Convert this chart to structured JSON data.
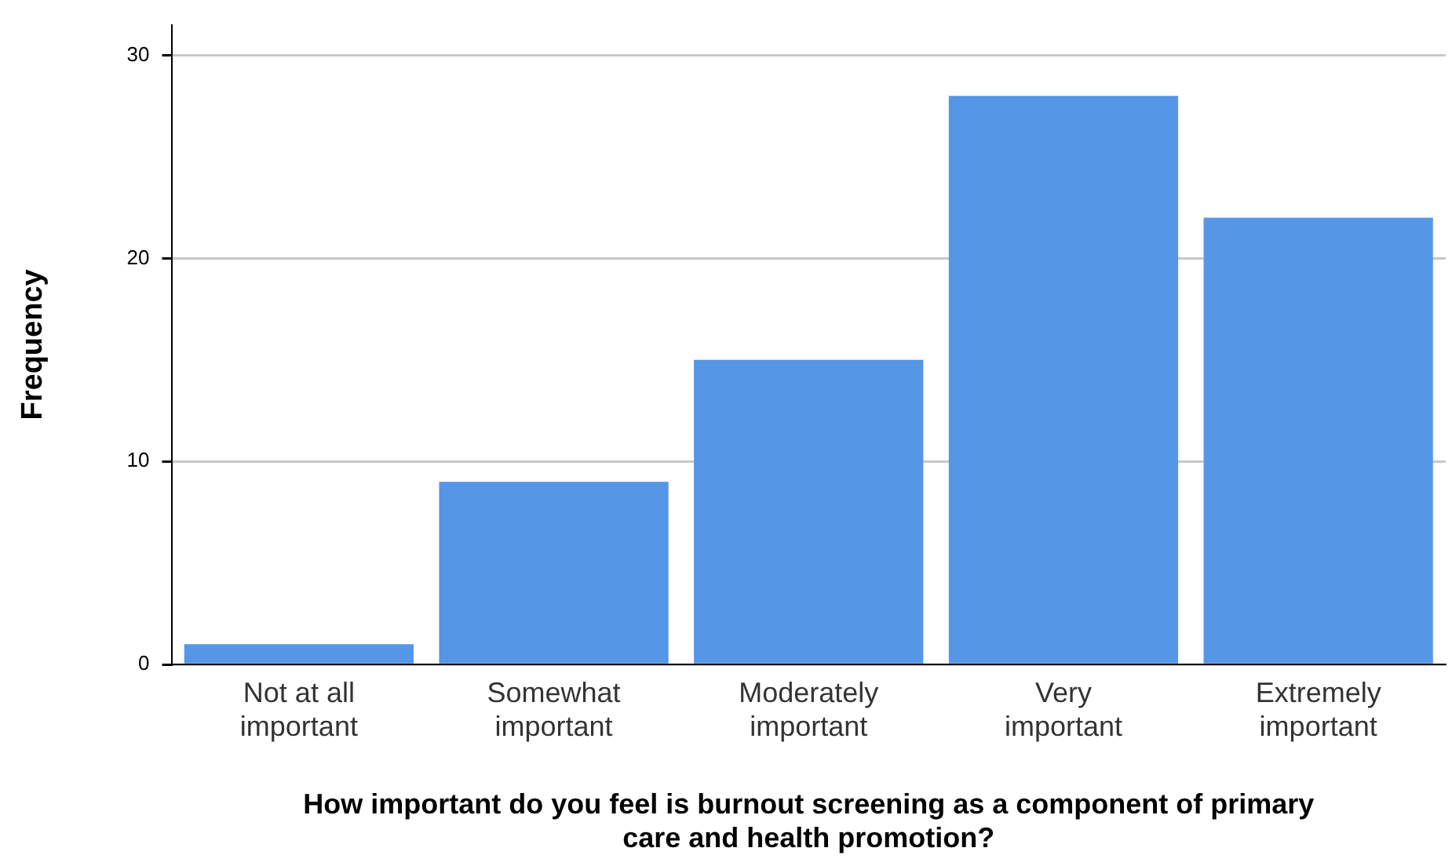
{
  "chart_data": {
    "type": "bar",
    "xlabel": "How important do you feel is burnout screening as a component of primary care and health promotion?",
    "ylabel": "Frequency",
    "categories": [
      "Not at all important",
      "Somewhat important",
      "Moderately important",
      "Very important",
      "Extremely important"
    ],
    "values": [
      1,
      9,
      15,
      28,
      22
    ],
    "color": "#5596e6",
    "ylim": [
      0,
      31.5
    ],
    "yticks": [
      0,
      10,
      20,
      30
    ],
    "grid": "y",
    "legend": false
  }
}
